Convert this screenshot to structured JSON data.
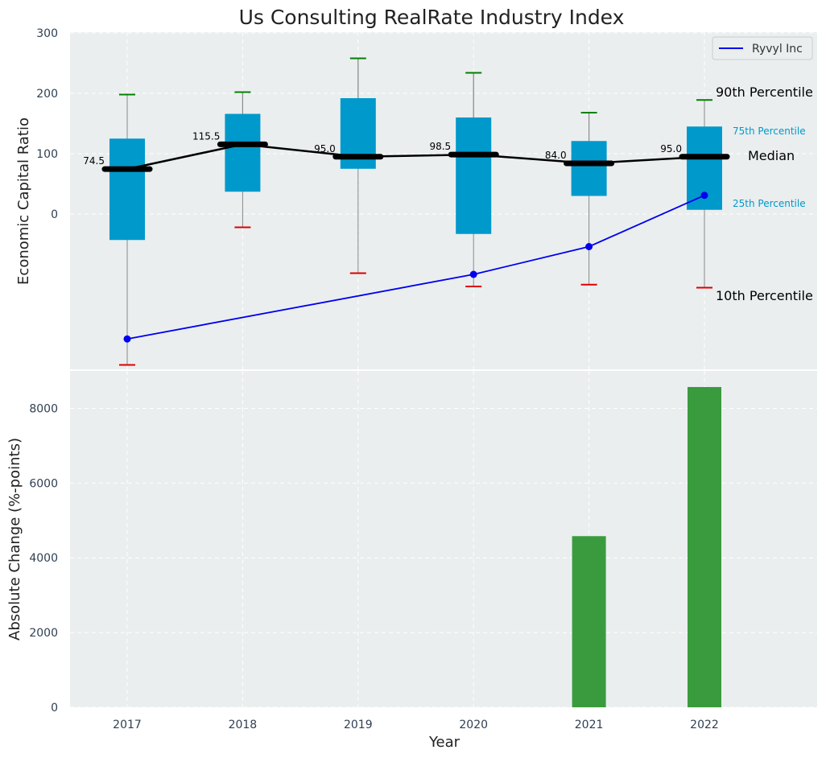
{
  "colors": {
    "panel_bg": "#eaeeef",
    "box_fill": "#0099cc",
    "whisker": "#888888",
    "cap_top": "#008000",
    "cap_bottom": "#dd0000",
    "median": "#000000",
    "company_line": "#0000ee",
    "bar": "#3a9b3e",
    "percentile_small_label": "#0099cc"
  },
  "chart_data": [
    {
      "type": "box",
      "title": "Us Consulting RealRate Industry Index",
      "ylabel": "Economic Capital Ratio",
      "ylim": [
        -250,
        300
      ],
      "yticks": [
        0,
        100,
        200,
        300
      ],
      "categories": [
        "2017",
        "2018",
        "2019",
        "2020",
        "2021",
        "2022"
      ],
      "boxes": [
        {
          "year": "2017",
          "p10": -250,
          "p25": -43,
          "median": 74.5,
          "p75": 125,
          "p90": 198
        },
        {
          "year": "2018",
          "p10": -22,
          "p25": 37,
          "median": 115.5,
          "p75": 166,
          "p90": 202
        },
        {
          "year": "2019",
          "p10": -98,
          "p25": 75,
          "median": 95.0,
          "p75": 192,
          "p90": 258
        },
        {
          "year": "2020",
          "p10": -120,
          "p25": -33,
          "median": 98.5,
          "p75": 160,
          "p90": 234
        },
        {
          "year": "2021",
          "p10": -117,
          "p25": 30,
          "median": 84.0,
          "p75": 121,
          "p90": 168
        },
        {
          "year": "2022",
          "p10": -122,
          "p25": 7,
          "median": 95.0,
          "p75": 145,
          "p90": 189
        }
      ],
      "median_labels": [
        "74.5",
        "115.5",
        "95.0",
        "98.5",
        "84.0",
        "95.0"
      ],
      "series": [
        {
          "name": "Ryvyl Inc",
          "x": [
            "2017",
            "2020",
            "2021",
            "2022"
          ],
          "values": [
            -207,
            -100,
            -54,
            31
          ]
        }
      ],
      "legend": {
        "position": "top-right",
        "entries": [
          "Ryvyl Inc"
        ]
      },
      "annotations": {
        "p90": "90th Percentile",
        "p75": "75th Percentile",
        "median": "Median",
        "p25": "25th Percentile",
        "p10": "10th Percentile"
      },
      "grid": true
    },
    {
      "type": "bar",
      "xlabel": "Year",
      "ylabel": "Absolute Change (%-points)",
      "categories": [
        "2017",
        "2018",
        "2019",
        "2020",
        "2021",
        "2022"
      ],
      "values": [
        0,
        0,
        0,
        0,
        4580,
        8570
      ],
      "ylim": [
        0,
        9000
      ],
      "yticks": [
        0,
        2000,
        4000,
        6000,
        8000
      ],
      "grid": true
    }
  ]
}
